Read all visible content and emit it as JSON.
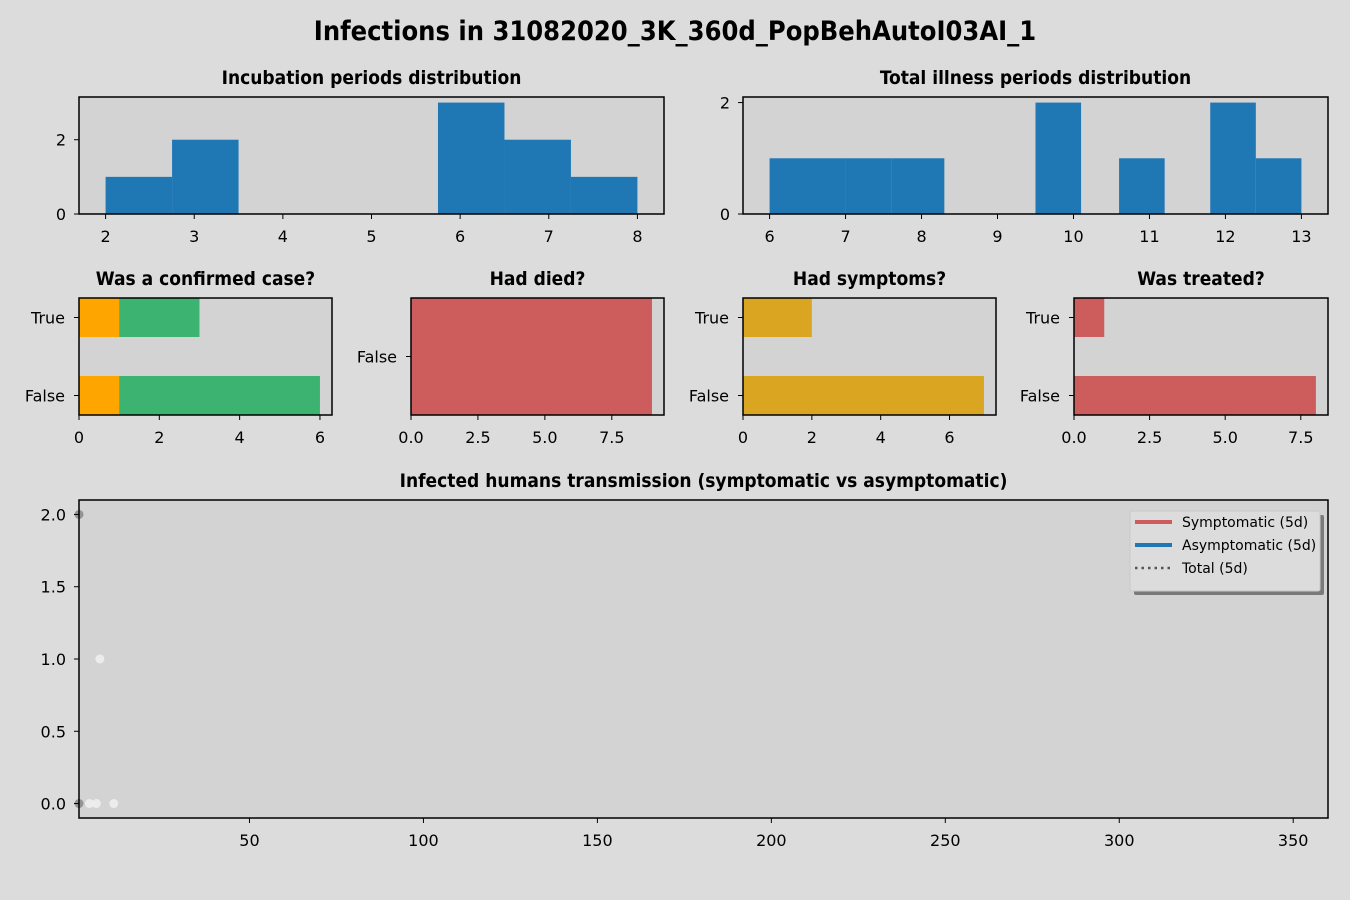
{
  "figure_title": "Infections in 31082020_3K_360d_PopBehAutoI03AI_1",
  "colors": {
    "background": "#dcdcdc",
    "axes_bg": "#d3d3d3",
    "hist_blue": "#1f77b4",
    "orange": "#ffa500",
    "green": "#3cb371",
    "red": "#cd5c5c",
    "gold": "#daa520",
    "legend_red": "#cd5c5c",
    "legend_blue": "#1f77b4",
    "legend_gray": "#555555"
  },
  "chart_data": [
    {
      "id": "incubation",
      "type": "bar",
      "title": "Incubation periods distribution",
      "bin_edges": [
        2.0,
        2.75,
        3.5,
        4.25,
        5.0,
        5.75,
        6.5,
        7.25,
        8.0
      ],
      "values": [
        1,
        2,
        0,
        0,
        0,
        3,
        2,
        1
      ],
      "xlim": [
        1.7,
        8.3
      ],
      "ylim": [
        0,
        3.15
      ],
      "xticks": [
        "2",
        "3",
        "4",
        "5",
        "6",
        "7",
        "8"
      ],
      "yticks": [
        "0",
        "2"
      ]
    },
    {
      "id": "illness",
      "type": "bar",
      "title": "Total illness periods distribution",
      "bin_edges": [
        6.0,
        7.0,
        7.6,
        8.3,
        9.5,
        10.1,
        10.6,
        11.2,
        11.8,
        12.4,
        13.0
      ],
      "values": [
        1,
        1,
        1,
        0,
        2,
        0,
        1,
        0,
        2,
        1
      ],
      "xlim": [
        5.65,
        13.35
      ],
      "ylim": [
        0,
        2.1
      ],
      "xticks": [
        "6",
        "7",
        "8",
        "9",
        "10",
        "11",
        "12",
        "13"
      ],
      "yticks": [
        "0",
        "2"
      ]
    },
    {
      "id": "confirmed",
      "type": "bar",
      "orientation": "horizontal",
      "stacked": true,
      "title": "Was a confirmed case?",
      "categories": [
        "False",
        "True"
      ],
      "series": [
        {
          "color": "orange",
          "values": [
            1,
            1
          ]
        },
        {
          "color": "green",
          "values": [
            5,
            2
          ]
        }
      ],
      "xlim": [
        0,
        6.3
      ],
      "xticks": [
        "0",
        "2",
        "4",
        "6"
      ]
    },
    {
      "id": "died",
      "type": "bar",
      "orientation": "horizontal",
      "title": "Had died?",
      "categories": [
        "False"
      ],
      "series": [
        {
          "color": "red",
          "values": [
            9
          ]
        }
      ],
      "xlim": [
        0,
        9.45
      ],
      "xticks": [
        "0.0",
        "2.5",
        "5.0",
        "7.5"
      ]
    },
    {
      "id": "symptoms",
      "type": "bar",
      "orientation": "horizontal",
      "title": "Had symptoms?",
      "categories": [
        "False",
        "True"
      ],
      "series": [
        {
          "color": "gold",
          "values": [
            7,
            2
          ]
        }
      ],
      "xlim": [
        0,
        7.35
      ],
      "xticks": [
        "0",
        "2",
        "4",
        "6"
      ]
    },
    {
      "id": "treated",
      "type": "bar",
      "orientation": "horizontal",
      "title": "Was treated?",
      "categories": [
        "False",
        "True"
      ],
      "series": [
        {
          "color": "red",
          "values": [
            8,
            1
          ]
        }
      ],
      "xlim": [
        0,
        8.4
      ],
      "xticks": [
        "0.0",
        "2.5",
        "5.0",
        "7.5"
      ]
    },
    {
      "id": "transmission",
      "type": "scatter",
      "title": "Infected humans transmission (symptomatic vs asymptomatic)",
      "xlim": [
        1,
        360
      ],
      "ylim": [
        -0.1,
        2.1
      ],
      "xticks": [
        "50",
        "100",
        "150",
        "200",
        "250",
        "300",
        "350"
      ],
      "yticks": [
        "0.0",
        "0.5",
        "1.0",
        "1.5",
        "2.0"
      ],
      "points": [
        {
          "x": 1,
          "y": 2,
          "style": "dark"
        },
        {
          "x": 7,
          "y": 1,
          "style": "light"
        },
        {
          "x": 1,
          "y": 0,
          "style": "dark"
        },
        {
          "x": 4,
          "y": 0,
          "style": "light"
        },
        {
          "x": 6,
          "y": 0,
          "style": "light"
        },
        {
          "x": 11,
          "y": 0,
          "style": "light"
        }
      ],
      "legend_position": "top-right",
      "legend": [
        {
          "label": "Symptomatic (5d)",
          "color": "legend_red",
          "style": "solid"
        },
        {
          "label": "Asymptomatic (5d)",
          "color": "legend_blue",
          "style": "solid"
        },
        {
          "label": "Total (5d)",
          "color": "legend_gray",
          "style": "dotted"
        }
      ]
    }
  ]
}
